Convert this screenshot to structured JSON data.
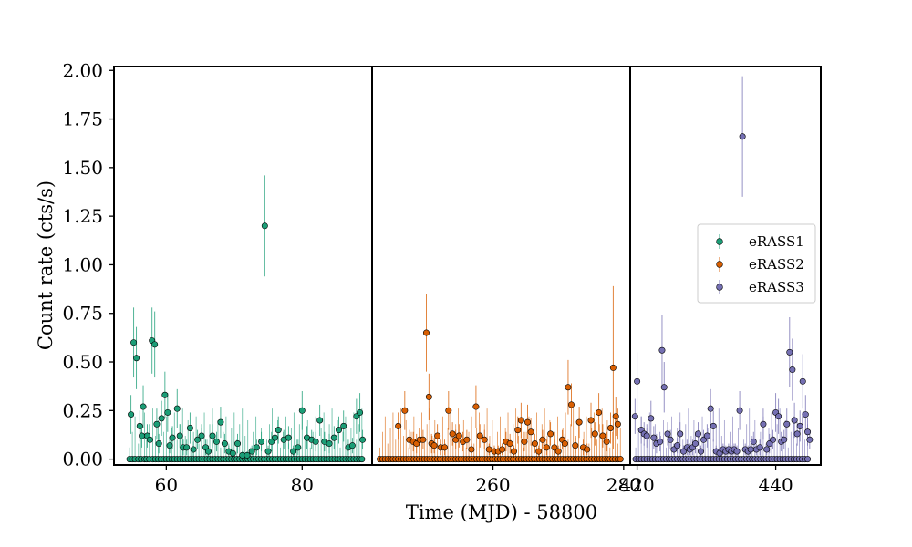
{
  "chart_data": {
    "type": "scatter",
    "xlabel": "Time (MJD) - 58800",
    "ylabel": "Count rate (cts/s)",
    "ylim": [
      -0.03,
      2.02
    ],
    "yticks": [
      "0.00",
      "0.25",
      "0.50",
      "0.75",
      "1.00",
      "1.25",
      "1.50",
      "1.75",
      "2.00"
    ],
    "legend_position": "center-right",
    "panels": [
      {
        "name": "eRASS1",
        "color": "#1b9e77",
        "xlim": [
          52.3,
          90.3
        ],
        "xticks": [
          "60",
          "80"
        ],
        "x": [
          54.8,
          55.2,
          55.6,
          56.1,
          56.4,
          56.6,
          57.2,
          57.6,
          57.9,
          58.3,
          58.6,
          58.9,
          59.3,
          59.8,
          60.2,
          60.5,
          60.9,
          61.6,
          62.0,
          62.5,
          63.0,
          63.5,
          64.0,
          64.6,
          65.2,
          65.8,
          66.2,
          66.8,
          67.4,
          68.0,
          68.6,
          69.2,
          69.8,
          70.5,
          71.2,
          71.9,
          72.6,
          73.3,
          74.0,
          74.5,
          75.0,
          75.5,
          76.0,
          76.5,
          77.3,
          78.0,
          78.7,
          79.4,
          80.0,
          80.7,
          81.4,
          82.0,
          82.6,
          83.3,
          84.0,
          84.7,
          85.4,
          86.1,
          86.8,
          87.4,
          88.0,
          88.5,
          88.9
        ],
        "y": [
          0.23,
          0.6,
          0.52,
          0.17,
          0.12,
          0.27,
          0.12,
          0.1,
          0.61,
          0.59,
          0.18,
          0.08,
          0.21,
          0.33,
          0.24,
          0.07,
          0.11,
          0.26,
          0.12,
          0.06,
          0.06,
          0.16,
          0.05,
          0.1,
          0.12,
          0.06,
          0.04,
          0.12,
          0.09,
          0.19,
          0.08,
          0.04,
          0.03,
          0.08,
          0.02,
          0.02,
          0.04,
          0.06,
          0.09,
          1.2,
          0.04,
          0.09,
          0.11,
          0.15,
          0.1,
          0.11,
          0.04,
          0.06,
          0.25,
          0.11,
          0.1,
          0.09,
          0.2,
          0.09,
          0.08,
          0.11,
          0.15,
          0.17,
          0.06,
          0.07,
          0.22,
          0.24,
          0.1
        ],
        "err": [
          0.1,
          0.18,
          0.16,
          0.08,
          0.06,
          0.11,
          0.06,
          0.05,
          0.17,
          0.17,
          0.08,
          0.05,
          0.09,
          0.12,
          0.1,
          0.04,
          0.06,
          0.1,
          0.06,
          0.04,
          0.04,
          0.08,
          0.04,
          0.05,
          0.06,
          0.04,
          0.03,
          0.06,
          0.05,
          0.08,
          0.05,
          0.03,
          0.03,
          0.05,
          0.02,
          0.02,
          0.03,
          0.04,
          0.05,
          0.26,
          0.03,
          0.05,
          0.06,
          0.07,
          0.05,
          0.06,
          0.03,
          0.04,
          0.1,
          0.06,
          0.05,
          0.05,
          0.08,
          0.05,
          0.05,
          0.06,
          0.07,
          0.08,
          0.04,
          0.04,
          0.09,
          0.1,
          0.05
        ],
        "zero_x": [
          54.6,
          55.0,
          55.4,
          55.9,
          56.3,
          56.8,
          57.1,
          57.5,
          58.0,
          58.4,
          58.8,
          59.2,
          59.6,
          60.0,
          60.4,
          60.8,
          61.2,
          61.6,
          62.0,
          62.4,
          62.8,
          63.2,
          63.6,
          64.0,
          64.4,
          64.8,
          65.2,
          65.6,
          66.0,
          66.4,
          66.8,
          67.2,
          67.6,
          68.0,
          68.4,
          68.8,
          69.2,
          69.6,
          70.0,
          70.4,
          70.8,
          71.2,
          71.6,
          72.0,
          72.4,
          72.8,
          73.2,
          73.6,
          74.0,
          74.4,
          74.8,
          75.2,
          75.6,
          76.0,
          76.4,
          76.8,
          77.2,
          77.6,
          78.0,
          78.4,
          78.8,
          79.2,
          79.6,
          80.0,
          80.4,
          80.8,
          81.2,
          81.6,
          82.0,
          82.4,
          82.8,
          83.2,
          83.6,
          84.0,
          84.4,
          84.8,
          85.2,
          85.6,
          86.0,
          86.4,
          86.8,
          87.2,
          87.6,
          88.0,
          88.4,
          88.8
        ]
      },
      {
        "name": "eRASS2",
        "color": "#d95f02",
        "xlim": [
          241.5,
          281.0
        ],
        "xticks": [
          "260",
          "280"
        ],
        "x": [
          245.5,
          246.5,
          247.2,
          247.8,
          248.3,
          248.8,
          249.3,
          249.8,
          250.2,
          250.6,
          251.0,
          251.5,
          252.0,
          252.6,
          253.2,
          253.8,
          254.3,
          254.8,
          255.4,
          256.0,
          256.7,
          257.4,
          258.0,
          258.7,
          259.4,
          260.2,
          260.8,
          261.4,
          262.0,
          262.6,
          263.2,
          263.8,
          264.3,
          264.8,
          265.3,
          265.8,
          266.4,
          267.0,
          267.6,
          268.2,
          268.8,
          269.4,
          270.0,
          270.6,
          271.0,
          271.5,
          272.0,
          272.6,
          273.2,
          273.8,
          274.4,
          275.0,
          275.6,
          276.2,
          276.8,
          277.4,
          278.0,
          278.4,
          278.8,
          279.1
        ],
        "y": [
          0.17,
          0.25,
          0.1,
          0.09,
          0.08,
          0.1,
          0.1,
          0.65,
          0.32,
          0.08,
          0.07,
          0.12,
          0.06,
          0.06,
          0.25,
          0.13,
          0.1,
          0.12,
          0.09,
          0.1,
          0.05,
          0.27,
          0.12,
          0.1,
          0.05,
          0.04,
          0.04,
          0.05,
          0.09,
          0.08,
          0.04,
          0.15,
          0.2,
          0.09,
          0.19,
          0.14,
          0.08,
          0.04,
          0.1,
          0.06,
          0.13,
          0.06,
          0.04,
          0.1,
          0.08,
          0.37,
          0.28,
          0.07,
          0.19,
          0.06,
          0.05,
          0.2,
          0.13,
          0.24,
          0.12,
          0.09,
          0.16,
          0.47,
          0.22,
          0.18
        ],
        "err": [
          0.07,
          0.1,
          0.05,
          0.05,
          0.05,
          0.05,
          0.05,
          0.2,
          0.12,
          0.05,
          0.04,
          0.06,
          0.04,
          0.04,
          0.1,
          0.06,
          0.05,
          0.06,
          0.05,
          0.05,
          0.03,
          0.11,
          0.06,
          0.05,
          0.03,
          0.03,
          0.03,
          0.03,
          0.05,
          0.05,
          0.03,
          0.07,
          0.09,
          0.05,
          0.09,
          0.07,
          0.05,
          0.03,
          0.05,
          0.04,
          0.06,
          0.04,
          0.03,
          0.05,
          0.05,
          0.14,
          0.11,
          0.04,
          0.08,
          0.04,
          0.03,
          0.09,
          0.06,
          0.1,
          0.06,
          0.05,
          0.08,
          0.42,
          0.1,
          0.08
        ],
        "zero_x": [
          242.7,
          243.1,
          243.5,
          243.9,
          244.3,
          244.7,
          245.1,
          245.5,
          245.9,
          246.3,
          246.7,
          247.1,
          247.5,
          247.9,
          248.3,
          248.7,
          249.1,
          249.5,
          249.9,
          250.3,
          250.7,
          251.1,
          251.5,
          251.9,
          252.3,
          252.7,
          253.1,
          253.5,
          253.9,
          254.3,
          254.7,
          255.1,
          255.5,
          255.9,
          256.3,
          256.7,
          257.1,
          257.5,
          257.9,
          258.3,
          258.7,
          259.1,
          259.5,
          259.9,
          260.3,
          260.7,
          261.1,
          261.5,
          261.9,
          262.3,
          262.7,
          263.1,
          263.5,
          263.9,
          264.3,
          264.7,
          265.1,
          265.5,
          265.9,
          266.3,
          266.7,
          267.1,
          267.5,
          267.9,
          268.3,
          268.7,
          269.1,
          269.5,
          269.9,
          270.3,
          270.7,
          271.1,
          271.5,
          271.9,
          272.3,
          272.7,
          273.1,
          273.5,
          273.9,
          274.3,
          274.7,
          275.1,
          275.5,
          275.9,
          276.3,
          276.7,
          277.1,
          277.5,
          277.9,
          278.3,
          278.7,
          279.1,
          279.5
        ]
      },
      {
        "name": "eRASS3",
        "color": "#7570b3",
        "xlim": [
          419.0,
          446.5
        ],
        "xticks": [
          "420",
          "440"
        ],
        "x": [
          419.7,
          420.0,
          420.6,
          421.0,
          421.4,
          422.0,
          422.4,
          422.8,
          423.3,
          423.6,
          423.9,
          424.4,
          424.8,
          425.3,
          425.8,
          426.2,
          426.7,
          427.2,
          427.6,
          428.0,
          428.4,
          428.8,
          429.2,
          429.6,
          430.1,
          430.6,
          431.0,
          431.4,
          431.9,
          432.4,
          432.8,
          433.2,
          433.6,
          434.0,
          434.4,
          434.8,
          435.2,
          435.6,
          436.0,
          436.4,
          436.8,
          437.2,
          437.7,
          438.2,
          438.7,
          439.1,
          439.6,
          440.0,
          440.4,
          440.8,
          441.2,
          441.6,
          442.0,
          442.4,
          442.7,
          443.1,
          443.5,
          443.9,
          444.3,
          444.6,
          444.9
        ],
        "y": [
          0.22,
          0.4,
          0.15,
          0.13,
          0.12,
          0.21,
          0.11,
          0.08,
          0.09,
          0.56,
          0.37,
          0.13,
          0.1,
          0.05,
          0.07,
          0.13,
          0.04,
          0.06,
          0.05,
          0.06,
          0.08,
          0.13,
          0.04,
          0.1,
          0.12,
          0.26,
          0.17,
          0.04,
          0.03,
          0.05,
          0.04,
          0.05,
          0.04,
          0.05,
          0.04,
          0.25,
          1.66,
          0.05,
          0.04,
          0.05,
          0.09,
          0.05,
          0.06,
          0.18,
          0.05,
          0.08,
          0.1,
          0.24,
          0.22,
          0.09,
          0.1,
          0.18,
          0.55,
          0.46,
          0.2,
          0.13,
          0.17,
          0.4,
          0.23,
          0.14,
          0.1
        ],
        "err": [
          0.09,
          0.15,
          0.07,
          0.06,
          0.06,
          0.09,
          0.06,
          0.05,
          0.05,
          0.18,
          0.13,
          0.06,
          0.05,
          0.03,
          0.04,
          0.06,
          0.03,
          0.04,
          0.03,
          0.04,
          0.05,
          0.06,
          0.03,
          0.05,
          0.06,
          0.1,
          0.08,
          0.03,
          0.03,
          0.03,
          0.03,
          0.03,
          0.03,
          0.03,
          0.03,
          0.1,
          0.31,
          0.03,
          0.03,
          0.03,
          0.05,
          0.03,
          0.04,
          0.08,
          0.03,
          0.05,
          0.05,
          0.1,
          0.09,
          0.05,
          0.05,
          0.08,
          0.18,
          0.16,
          0.09,
          0.06,
          0.08,
          0.14,
          0.1,
          0.07,
          0.05
        ],
        "zero_x": [
          419.8,
          420.2,
          420.6,
          421.0,
          421.4,
          421.8,
          422.2,
          422.6,
          423.0,
          423.4,
          423.8,
          424.2,
          424.6,
          425.0,
          425.4,
          425.8,
          426.2,
          426.6,
          427.0,
          427.4,
          427.8,
          428.2,
          428.6,
          429.0,
          429.4,
          429.8,
          430.2,
          430.6,
          431.0,
          431.4,
          431.8,
          432.2,
          432.6,
          433.0,
          433.4,
          433.8,
          434.2,
          434.6,
          435.0,
          435.4,
          435.8,
          436.2,
          436.6,
          437.0,
          437.4,
          437.8,
          438.2,
          438.6,
          439.0,
          439.4,
          439.8,
          440.2,
          440.6,
          441.0,
          441.4,
          441.8,
          442.2,
          442.6,
          443.0,
          443.4,
          443.8,
          444.2,
          444.6
        ]
      }
    ]
  }
}
